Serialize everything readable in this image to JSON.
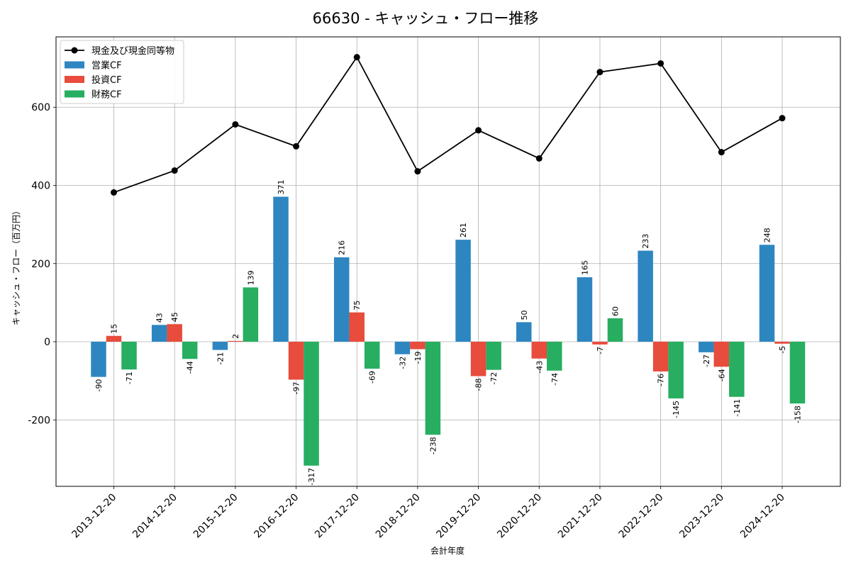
{
  "chart_data": {
    "type": "bar",
    "title": "66630 - キャッシュ・フロー推移",
    "xlabel": "会計年度",
    "ylabel": "キャッシュ・フロー（百万円）",
    "ylim": [
      -370,
      780
    ],
    "yticks": [
      -200,
      0,
      200,
      400,
      600
    ],
    "ytick_labels": [
      "-200",
      "0",
      "200",
      "400",
      "600"
    ],
    "grid": true,
    "legend_position": "top-left",
    "categories": [
      "2013-12-20",
      "2014-12-20",
      "2015-12-20",
      "2016-12-20",
      "2017-12-20",
      "2018-12-20",
      "2019-12-20",
      "2020-12-20",
      "2021-12-20",
      "2022-12-20",
      "2023-12-20",
      "2024-12-20"
    ],
    "series": [
      {
        "name": "営業CF",
        "type": "bar",
        "color": "#2e86c1",
        "values": [
          -90,
          43,
          -21,
          371,
          216,
          -32,
          261,
          50,
          165,
          233,
          -27,
          248
        ],
        "labels": [
          "-90",
          "43",
          "-21",
          "371",
          "216",
          "-32",
          "261",
          "50",
          "165",
          "233",
          "-27",
          "248"
        ]
      },
      {
        "name": "投資CF",
        "type": "bar",
        "color": "#e74c3c",
        "values": [
          15,
          45,
          2,
          -97,
          75,
          -19,
          -88,
          -43,
          -7,
          -76,
          -64,
          -5
        ],
        "labels": [
          "15",
          "45",
          "2",
          "-97",
          "75",
          "-19",
          "-88",
          "-43",
          "-7",
          "-76",
          "-64",
          "-5"
        ]
      },
      {
        "name": "財務CF",
        "type": "bar",
        "color": "#27ae60",
        "values": [
          -71,
          -44,
          139,
          -317,
          -69,
          -238,
          -72,
          -74,
          60,
          -145,
          -141,
          -158
        ],
        "labels": [
          "-71",
          "-44",
          "139",
          "-317",
          "-69",
          "-238",
          "-72",
          "-74",
          "60",
          "-145",
          "-141",
          "-158"
        ]
      },
      {
        "name": "現金及び現金同等物",
        "type": "line",
        "color": "#000000",
        "values": [
          382,
          438,
          556,
          500,
          728,
          436,
          541,
          469,
          690,
          712,
          485,
          572
        ]
      }
    ]
  }
}
